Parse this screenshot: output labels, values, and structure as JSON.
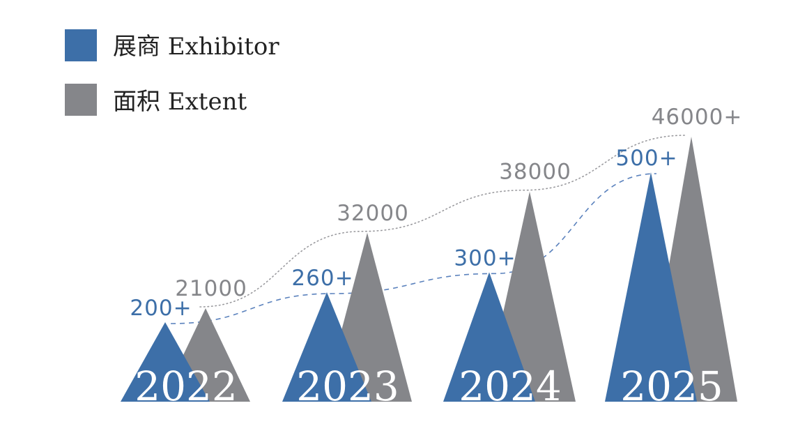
{
  "chart_data": {
    "type": "bar",
    "categories": [
      "2022",
      "2023",
      "2024",
      "2025"
    ],
    "series": [
      {
        "name": "展商 Exhibitor",
        "values": [
          200,
          260,
          300,
          500
        ],
        "labels": [
          "200+",
          "260+",
          "300+",
          "500+"
        ],
        "color": "#3d6fa8"
      },
      {
        "name": "面积 Extent",
        "values": [
          21000,
          32000,
          38000,
          46000
        ],
        "labels": [
          "21000",
          "32000",
          "38000",
          "46000+"
        ],
        "color": "#85868a"
      }
    ],
    "legend": "top-left",
    "grid": false,
    "trend_lines": true
  }
}
